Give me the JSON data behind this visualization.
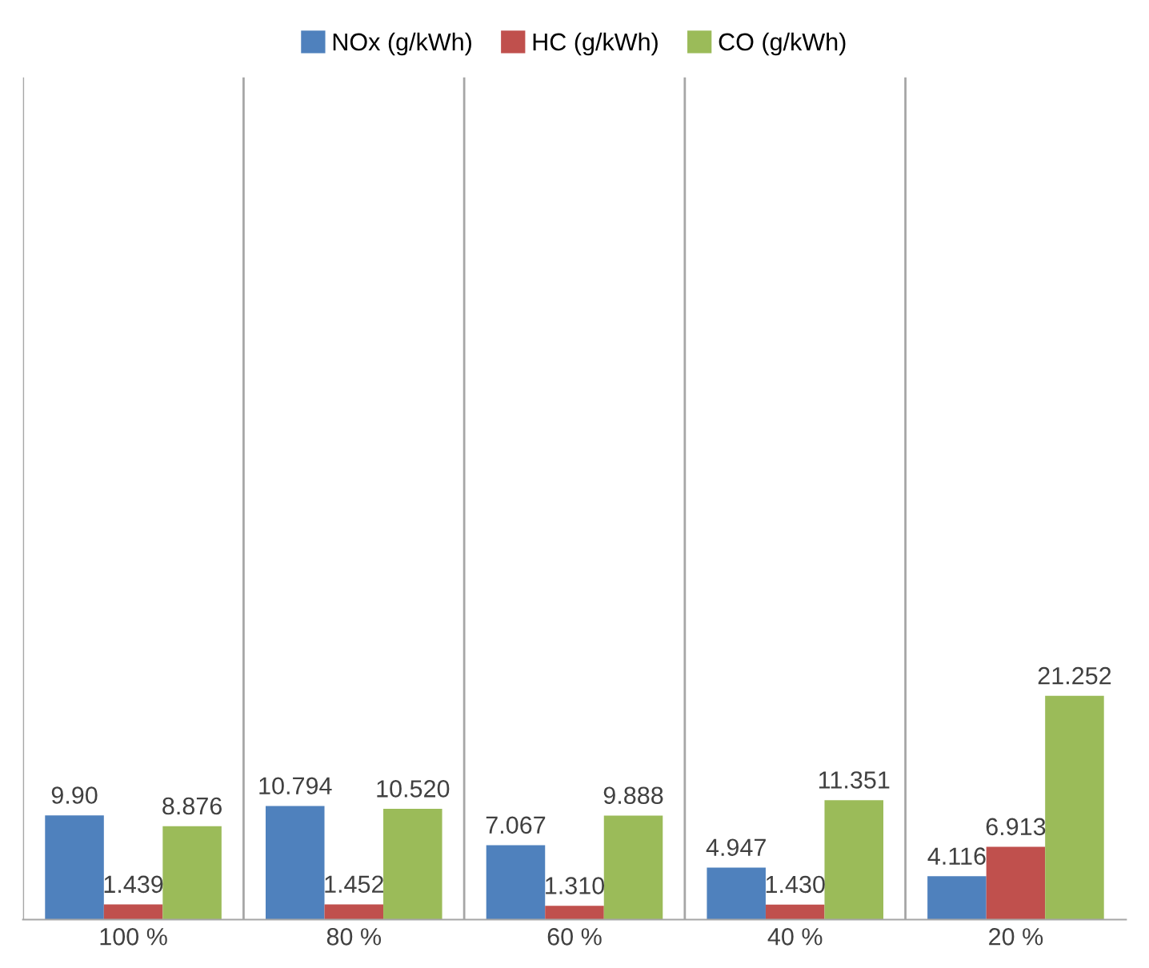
{
  "chart_data": {
    "type": "bar",
    "categories": [
      "100 %",
      "80 %",
      "60 %",
      "40 %",
      "20 %"
    ],
    "series": [
      {
        "name": "NOx (g/kWh)",
        "color": "#4f81bd",
        "values": [
          9.9,
          10.794,
          7.067,
          4.947,
          4.116
        ],
        "value_labels": [
          "9.90",
          "10.794",
          "7.067",
          "4.947",
          "4.116"
        ]
      },
      {
        "name": "HC (g/kWh)",
        "color": "#c0504d",
        "values": [
          1.439,
          1.452,
          1.31,
          1.43,
          6.913
        ],
        "value_labels": [
          "1.439",
          "1.452",
          "1.310",
          "1.430",
          "6.913"
        ]
      },
      {
        "name": "CO (g/kWh)",
        "color": "#9bbb59",
        "values": [
          8.876,
          10.52,
          9.888,
          11.351,
          21.252
        ],
        "value_labels": [
          "8.876",
          "10.520",
          "9.888",
          "11.351",
          "21.252"
        ]
      }
    ],
    "ylim": [
      0,
      80
    ],
    "grid": "x",
    "legend": "top",
    "tick_labels": "x"
  }
}
